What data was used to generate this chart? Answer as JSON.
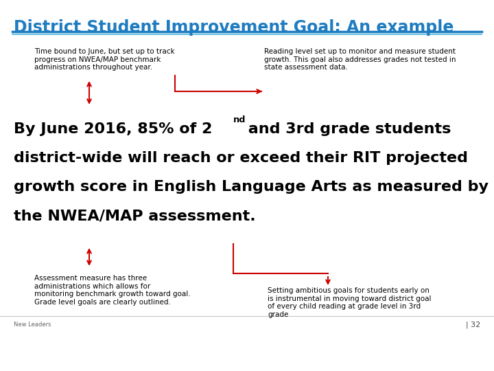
{
  "title": "District Student Improvement Goal: An example",
  "title_color": "#1F7CC0",
  "title_underline_color1": "#1F7CC0",
  "title_underline_color2": "#4DB8D8",
  "bg_color": "#FFFFFF",
  "arrow_color": "#CC0000",
  "top_left_label": "Time bound to June, but set up to track\nprogress on NWEA/MAP benchmark\nadministrations throughout year.",
  "top_right_label": "Reading level set up to monitor and measure student\ngrowth. This goal also addresses grades not tested in\nstate assessment data.",
  "main_text_part1": "By June 2016, 85% of 2",
  "main_text_super": "nd",
  "main_text_part2": " and 3rd grade students",
  "main_text_line2": "district-wide will reach or exceed their RIT projected",
  "main_text_line3": "growth score in English Language Arts as measured by",
  "main_text_line4": "the NWEA/MAP assessment.",
  "bottom_left_label": "Assessment measure has three\nadministrations which allows for\nmonitoring benchmark growth toward goal.\nGrade level goals are clearly outlined.",
  "bottom_right_label": "Setting ambitious goals for students early on\nis instrumental in moving toward district goal\nof every child reading at grade level in 3rd\ngrade",
  "label_fontsize": 7.5,
  "main_fontsize": 16,
  "title_fontsize": 17,
  "footer_left": "New Leaders",
  "footer_right": "| 32"
}
